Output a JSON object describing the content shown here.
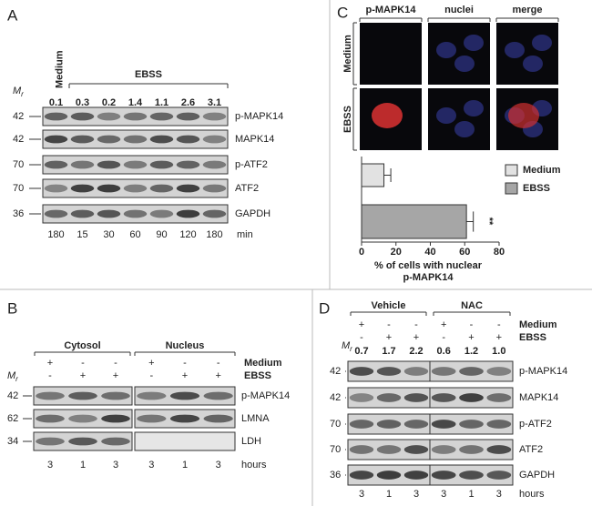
{
  "figure": {
    "A": {
      "label": "A",
      "single": "Medium",
      "bracket": "EBSS",
      "mr": "M",
      "mr_sub": "r",
      "ratios": [
        "0.1",
        "0.3",
        "0.2",
        "1.4",
        "1.1",
        "2.6",
        "3.1"
      ],
      "blots": [
        {
          "mw": "42",
          "name": "p-MAPK14"
        },
        {
          "mw": "42",
          "name": "MAPK14"
        },
        {
          "mw": "70",
          "name": "p-ATF2"
        },
        {
          "mw": "70",
          "name": "ATF2"
        },
        {
          "mw": "36",
          "name": "GAPDH"
        }
      ],
      "times": [
        "180",
        "15",
        "30",
        "60",
        "90",
        "120",
        "180"
      ],
      "time_unit": "min"
    },
    "B": {
      "label": "B",
      "groups": [
        "Cytosol",
        "Nucleus"
      ],
      "conditions": [
        {
          "name": "Medium",
          "signs": [
            "+",
            "-",
            "-",
            "+",
            "-",
            "-"
          ]
        },
        {
          "name": "EBSS",
          "signs": [
            "-",
            "+",
            "+",
            "-",
            "+",
            "+"
          ]
        }
      ],
      "mr": "M",
      "mr_sub": "r",
      "blots": [
        {
          "mw": "42",
          "name": "p-MAPK14"
        },
        {
          "mw": "62",
          "name": "LMNA"
        },
        {
          "mw": "34",
          "name": "LDH"
        }
      ],
      "times": [
        "3",
        "1",
        "3",
        "3",
        "1",
        "3"
      ],
      "time_unit": "hours"
    },
    "C": {
      "label": "C",
      "columns": [
        "p-MAPK14",
        "nuclei",
        "merge"
      ],
      "rows": [
        "Medium",
        "EBSS"
      ]
    },
    "D": {
      "label": "D",
      "groups": [
        "Vehicle",
        "NAC"
      ],
      "conditions": [
        {
          "name": "Medium",
          "signs": [
            "+",
            "-",
            "-",
            "+",
            "-",
            "-"
          ]
        },
        {
          "name": "EBSS",
          "signs": [
            "-",
            "+",
            "+",
            "-",
            "+",
            "+"
          ]
        }
      ],
      "mr": "M",
      "mr_sub": "r",
      "ratios": [
        "0.7",
        "1.7",
        "2.2",
        "0.6",
        "1.2",
        "1.0"
      ],
      "blots": [
        {
          "mw": "42",
          "name": "p-MAPK14"
        },
        {
          "mw": "42",
          "name": "MAPK14"
        },
        {
          "mw": "70",
          "name": "p-ATF2"
        },
        {
          "mw": "70",
          "name": "ATF2"
        },
        {
          "mw": "36",
          "name": "GAPDH"
        }
      ],
      "times": [
        "3",
        "1",
        "3",
        "3",
        "1",
        "3"
      ],
      "time_unit": "hours"
    }
  },
  "chart_data": {
    "type": "bar",
    "orientation": "horizontal",
    "categories": [
      "Medium",
      "EBSS"
    ],
    "values": [
      13,
      61
    ],
    "errors": [
      4,
      4
    ],
    "colors": [
      "#e2e2e2",
      "#a6a6a6"
    ],
    "xlim": [
      0,
      80
    ],
    "xticks": [
      0,
      20,
      40,
      60,
      80
    ],
    "xlabel": [
      "% of cells with nuclear",
      "p-MAPK14"
    ],
    "annotation": "**",
    "legend": "right"
  }
}
